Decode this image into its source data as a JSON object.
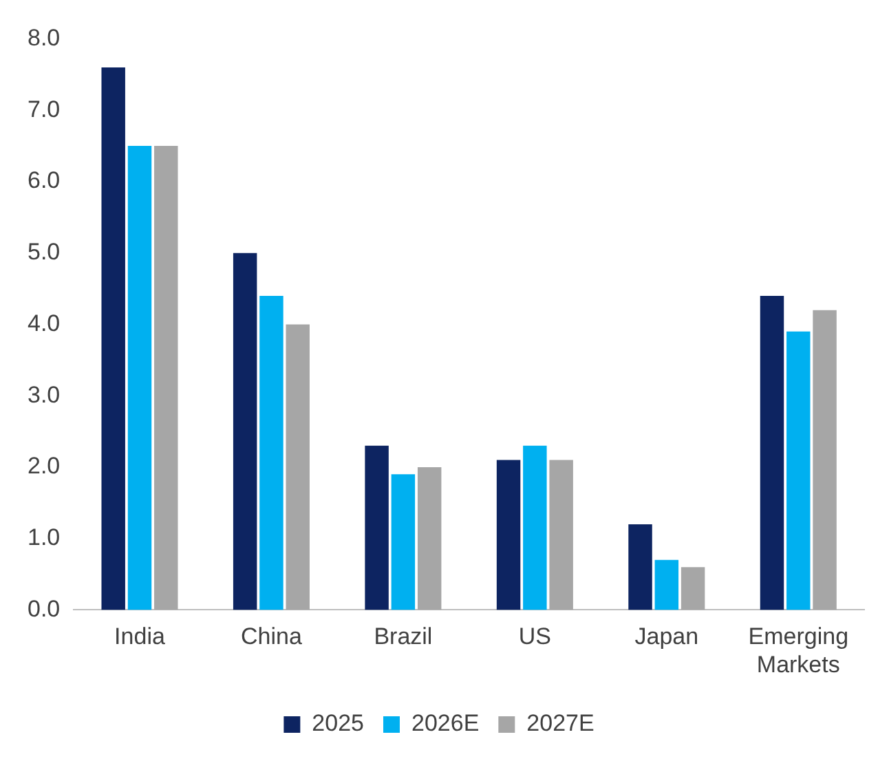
{
  "chart_data": {
    "type": "bar",
    "categories": [
      "India",
      "China",
      "Brazil",
      "US",
      "Japan",
      "Emerging Markets"
    ],
    "series": [
      {
        "name": "2025",
        "color": "#0d2461",
        "values": [
          7.6,
          5.0,
          2.3,
          2.1,
          1.2,
          4.4
        ]
      },
      {
        "name": "2026E",
        "color": "#00b0f0",
        "values": [
          6.5,
          4.4,
          1.9,
          2.3,
          0.7,
          3.9
        ]
      },
      {
        "name": "2027E",
        "color": "#a6a6a6",
        "values": [
          6.5,
          4.0,
          2.0,
          2.1,
          0.6,
          4.2
        ]
      }
    ],
    "ylim": [
      0,
      8
    ],
    "yticks": [
      {
        "value": 0,
        "label": "0.0"
      },
      {
        "value": 1,
        "label": "1.0"
      },
      {
        "value": 2,
        "label": "2.0"
      },
      {
        "value": 3,
        "label": "3.0"
      },
      {
        "value": 4,
        "label": "4.0"
      },
      {
        "value": 5,
        "label": "5.0"
      },
      {
        "value": 6,
        "label": "6.0"
      },
      {
        "value": 7,
        "label": "7.0"
      },
      {
        "value": 8,
        "label": "8.0"
      }
    ],
    "grid": false,
    "legend": "bottom"
  }
}
